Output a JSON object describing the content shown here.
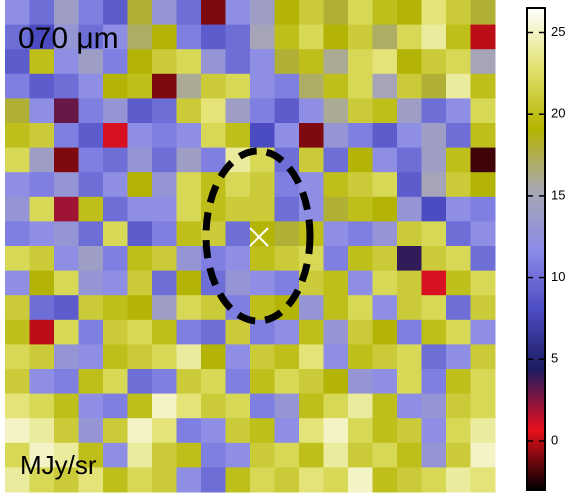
{
  "chart_data": {
    "type": "heatmap",
    "title": "070 μm",
    "colorbar_label": "MJy/sr",
    "zlim": [
      -3,
      26.5
    ],
    "zticks": [
      0,
      5,
      10,
      15,
      20,
      25
    ],
    "colormap": [
      "#000000",
      "#e8101c",
      "#1c1c60",
      "#4c4cc4",
      "#8c8ce8",
      "#a8a8b0",
      "#b4b400",
      "#e2e270",
      "#ffffff"
    ],
    "z": [
      [
        12,
        10,
        14,
        11,
        9,
        18,
        13,
        10,
        -1,
        12,
        14,
        19,
        21,
        18,
        22,
        20,
        19,
        23,
        21,
        18
      ],
      [
        10,
        8,
        13,
        10,
        12,
        17,
        19,
        11,
        9,
        10,
        15,
        20,
        22,
        19,
        21,
        17,
        22,
        24,
        20,
        0
      ],
      [
        9,
        20,
        12,
        14,
        11,
        19,
        21,
        22,
        13,
        10,
        12,
        18,
        20,
        16,
        22,
        23,
        19,
        21,
        22,
        15
      ],
      [
        11,
        9,
        10,
        12,
        19,
        20,
        -1,
        16,
        21,
        22,
        12,
        11,
        17,
        20,
        22,
        15,
        21,
        18,
        24,
        20
      ],
      [
        18,
        12,
        3,
        11,
        13,
        9,
        10,
        21,
        23,
        14,
        11,
        9,
        12,
        16,
        21,
        20,
        14,
        10,
        12,
        22
      ],
      [
        20,
        21,
        11,
        9,
        1,
        12,
        11,
        12,
        22,
        20,
        8,
        12,
        -1,
        13,
        11,
        9,
        12,
        14,
        10,
        20
      ],
      [
        22,
        14,
        -1,
        11,
        10,
        13,
        10,
        14,
        11,
        24,
        22,
        10,
        21,
        10,
        19,
        12,
        10,
        14,
        20,
        -2
      ],
      [
        12,
        11,
        13,
        10,
        12,
        19,
        13,
        22,
        20,
        22,
        21,
        11,
        12,
        20,
        21,
        22,
        9,
        15,
        21,
        19
      ],
      [
        13,
        22,
        2,
        20,
        10,
        12,
        12,
        22,
        20,
        21,
        21,
        10,
        12,
        18,
        20,
        19,
        13,
        8,
        12,
        11
      ],
      [
        11,
        12,
        13,
        10,
        22,
        9,
        11,
        20,
        21,
        10,
        19,
        18,
        20,
        12,
        11,
        13,
        21,
        22,
        10,
        12
      ],
      [
        22,
        21,
        12,
        14,
        11,
        20,
        21,
        13,
        11,
        12,
        20,
        21,
        22,
        11,
        20,
        21,
        4,
        21,
        22,
        10
      ],
      [
        12,
        19,
        22,
        13,
        12,
        21,
        10,
        19,
        10,
        13,
        12,
        11,
        21,
        20,
        12,
        22,
        21,
        1,
        20,
        22
      ],
      [
        21,
        10,
        9,
        21,
        20,
        19,
        14,
        22,
        21,
        11,
        20,
        19,
        13,
        20,
        22,
        12,
        21,
        22,
        10,
        21
      ],
      [
        20,
        0,
        22,
        11,
        21,
        22,
        20,
        11,
        10,
        21,
        11,
        12,
        20,
        13,
        21,
        19,
        11,
        20,
        22,
        12
      ],
      [
        22,
        21,
        13,
        12,
        20,
        21,
        22,
        24,
        19,
        12,
        21,
        20,
        23,
        12,
        20,
        21,
        22,
        10,
        12,
        21
      ],
      [
        21,
        12,
        11,
        20,
        22,
        10,
        11,
        21,
        22,
        11,
        20,
        22,
        21,
        19,
        13,
        12,
        22,
        11,
        20,
        22
      ],
      [
        23,
        22,
        20,
        12,
        11,
        20,
        25,
        23,
        21,
        22,
        11,
        13,
        20,
        22,
        24,
        20,
        12,
        13,
        21,
        22
      ],
      [
        25,
        24,
        21,
        13,
        21,
        25,
        23,
        11,
        12,
        21,
        20,
        12,
        23,
        25,
        22,
        20,
        21,
        12,
        22,
        24
      ],
      [
        22,
        25,
        24,
        20,
        12,
        24,
        21,
        20,
        11,
        12,
        21,
        22,
        20,
        24,
        21,
        22,
        20,
        13,
        21,
        25
      ],
      [
        24,
        22,
        21,
        23,
        20,
        22,
        21,
        12,
        10,
        20,
        22,
        21,
        23,
        22,
        25,
        20,
        21,
        22,
        24,
        23
      ]
    ]
  }
}
